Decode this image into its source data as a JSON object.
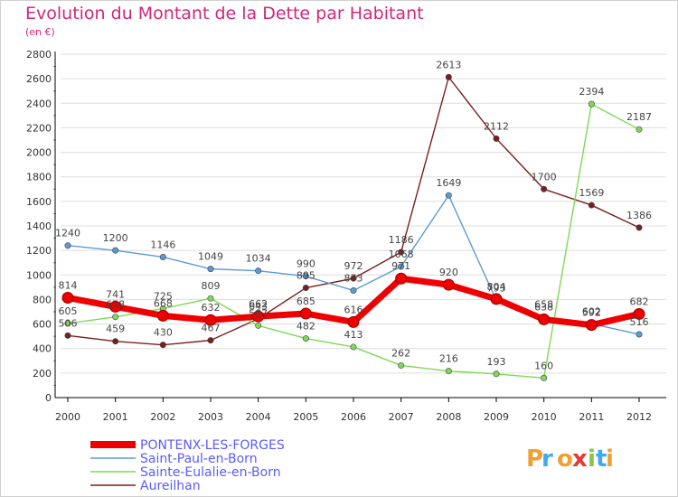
{
  "title": "Evolution du Montant de la Dette par Habitant",
  "unit": "(en €)",
  "logo": "Proxiti",
  "colors": {
    "title": "#d2277a",
    "legend_text": "#5b5bff",
    "axis": "#000000",
    "grid": "#dddddd"
  },
  "chart_data": {
    "type": "line",
    "x": [
      "2000",
      "2001",
      "2002",
      "2003",
      "2004",
      "2005",
      "2006",
      "2007",
      "2008",
      "2009",
      "2010",
      "2011",
      "2012"
    ],
    "ylim": [
      0,
      2800
    ],
    "yticks": [
      0,
      200,
      400,
      600,
      800,
      1000,
      1200,
      1400,
      1600,
      1800,
      2000,
      2200,
      2400,
      2600,
      2800
    ],
    "grid": "horizontal",
    "legend_position": "bottom-left",
    "series": [
      {
        "name": "Aureilhan",
        "color": "#7a1f1f",
        "values": [
          506,
          459,
          430,
          467,
          643,
          895,
          972,
          1186,
          2613,
          2112,
          1700,
          1569,
          1386
        ]
      },
      {
        "name": "Saint-Paul-en-Born",
        "color": "#5b9bd5",
        "values": [
          1240,
          1200,
          1146,
          1049,
          1034,
          990,
          873,
          1068,
          1649,
          793,
          658,
          602,
          516
        ]
      },
      {
        "name": "Sainte-Eulalie-en-Born",
        "color": "#7ed957",
        "values": [
          605,
          658,
          725,
          809,
          587,
          482,
          413,
          262,
          216,
          193,
          160,
          2394,
          2187
        ]
      },
      {
        "name": "PONTENX-LES-FORGES",
        "color": "#ee0000",
        "values": [
          814,
          741,
          668,
          632,
          662,
          685,
          616,
          971,
          920,
          804,
          638,
          592,
          682
        ]
      }
    ]
  }
}
